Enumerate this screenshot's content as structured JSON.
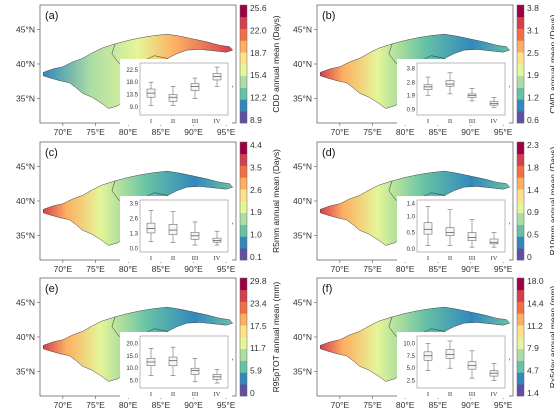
{
  "lat_labels": [
    "45°N",
    "40°N",
    "35°N"
  ],
  "lon_labels": [
    "70°E",
    "75°E",
    "80°E",
    "85°E",
    "90°E",
    "95°E"
  ],
  "inset_categories": [
    "I",
    "II",
    "III",
    "IV"
  ],
  "panels": [
    {
      "label": "(a)",
      "cbar_title": "CDD annual mean (Days)",
      "palette": "rev",
      "cbar_ticks": [
        "25.6",
        "22.0",
        "18.7",
        "15.4",
        "12.2",
        "8.9"
      ],
      "inset_ticks": [
        "22.5",
        "18.0",
        "13.5",
        "9.0"
      ],
      "inset_range": [
        6,
        25
      ],
      "inset_medians": [
        14,
        12.5,
        16.5,
        20
      ],
      "inset_q": [
        [
          12.5,
          15.5
        ],
        [
          11,
          13.5
        ],
        [
          15,
          17.5
        ],
        [
          18.8,
          21.2
        ]
      ],
      "inset_w": [
        [
          9.5,
          18
        ],
        [
          9.5,
          16.5
        ],
        [
          12,
          19.5
        ],
        [
          16.5,
          23.5
        ]
      ]
    },
    {
      "label": "(b)",
      "cbar_title": "CWD annual mean (Days)",
      "palette": "rev",
      "cbar_ticks": [
        "3.8",
        "3.1",
        "2.5",
        "1.9",
        "1.2",
        "0.6"
      ],
      "inset_ticks": [
        "3.8",
        "2.8",
        "1.9",
        "0.9"
      ],
      "inset_range": [
        0.5,
        4.2
      ],
      "inset_medians": [
        2.5,
        2.7,
        1.9,
        1.3
      ],
      "inset_q": [
        [
          2.3,
          2.65
        ],
        [
          2.55,
          2.95
        ],
        [
          1.75,
          2.0
        ],
        [
          1.2,
          1.45
        ]
      ],
      "inset_w": [
        [
          1.9,
          3.2
        ],
        [
          2.0,
          3.5
        ],
        [
          1.5,
          2.4
        ],
        [
          1.05,
          1.75
        ]
      ]
    },
    {
      "label": "(c)",
      "cbar_title": "R5mm annual mean (Days)",
      "palette": "rev",
      "cbar_ticks": [
        "4.4",
        "3.5",
        "2.6",
        "1.9",
        "1.0",
        "0.1"
      ],
      "inset_ticks": [
        "3.9",
        "2.6",
        "1.3",
        "0.0"
      ],
      "inset_range": [
        -0.3,
        4.2
      ],
      "inset_medians": [
        1.75,
        1.6,
        1.1,
        0.7
      ],
      "inset_q": [
        [
          1.35,
          2.2
        ],
        [
          1.2,
          2.1
        ],
        [
          0.8,
          1.4
        ],
        [
          0.55,
          0.9
        ]
      ],
      "inset_w": [
        [
          0.6,
          3.3
        ],
        [
          0.5,
          3.2
        ],
        [
          0.3,
          2.3
        ],
        [
          0.3,
          1.5
        ]
      ]
    },
    {
      "label": "(d)",
      "cbar_title": "R10mm annual mean (Days)",
      "palette": "rev",
      "cbar_ticks": [
        "2.3",
        "1.8",
        "1.4",
        "0.9",
        "0.5",
        "0"
      ],
      "inset_ticks": [
        "1.4",
        "1.0",
        "0.5",
        "0.0"
      ],
      "inset_range": [
        -0.1,
        1.5
      ],
      "inset_medians": [
        0.6,
        0.5,
        0.35,
        0.2
      ],
      "inset_q": [
        [
          0.45,
          0.8
        ],
        [
          0.4,
          0.65
        ],
        [
          0.25,
          0.5
        ],
        [
          0.15,
          0.3
        ]
      ],
      "inset_w": [
        [
          0.1,
          1.3
        ],
        [
          0.1,
          1.2
        ],
        [
          0.05,
          0.9
        ],
        [
          0.05,
          0.5
        ]
      ]
    },
    {
      "label": "(e)",
      "cbar_title": "R95pTOT annual mean (mm)",
      "palette": "rev",
      "cbar_ticks": [
        "29.8",
        "23.4",
        "17.5",
        "11.7",
        "5.9",
        "0"
      ],
      "inset_ticks": [
        "20.0",
        "15.0",
        "10.0",
        "5.0"
      ],
      "inset_range": [
        2,
        23
      ],
      "inset_medians": [
        12.5,
        13,
        9,
        6.5
      ],
      "inset_q": [
        [
          11,
          14
        ],
        [
          11,
          14.5
        ],
        [
          7.5,
          10
        ],
        [
          5.5,
          7.5
        ]
      ],
      "inset_w": [
        [
          7,
          18
        ],
        [
          7,
          18.5
        ],
        [
          4.5,
          14
        ],
        [
          4,
          9.5
        ]
      ]
    },
    {
      "label": "(f)",
      "cbar_title": "Rx5day annual mean (mm)",
      "palette": "rev",
      "cbar_ticks": [
        "18.0",
        "14.4",
        "11.2",
        "7.9",
        "4.7",
        "1.4"
      ],
      "inset_ticks": [
        "10.0",
        "7.5",
        "5.0",
        "2.5"
      ],
      "inset_range": [
        1,
        11.5
      ],
      "inset_medians": [
        7.5,
        7.8,
        5.5,
        4
      ],
      "inset_q": [
        [
          6.6,
          8.3
        ],
        [
          7,
          8.8
        ],
        [
          4.8,
          6.3
        ],
        [
          3.4,
          4.5
        ]
      ],
      "inset_w": [
        [
          4.5,
          10
        ],
        [
          5,
          10.5
        ],
        [
          3,
          8.5
        ],
        [
          2.5,
          6
        ]
      ]
    }
  ],
  "palette": {
    "rev": [
      "#5e4fa2",
      "#3288bd",
      "#66c2a5",
      "#abdda4",
      "#e6f598",
      "#fee08b",
      "#fdae61",
      "#f46d43",
      "#d53e4f",
      "#9e0142"
    ]
  }
}
